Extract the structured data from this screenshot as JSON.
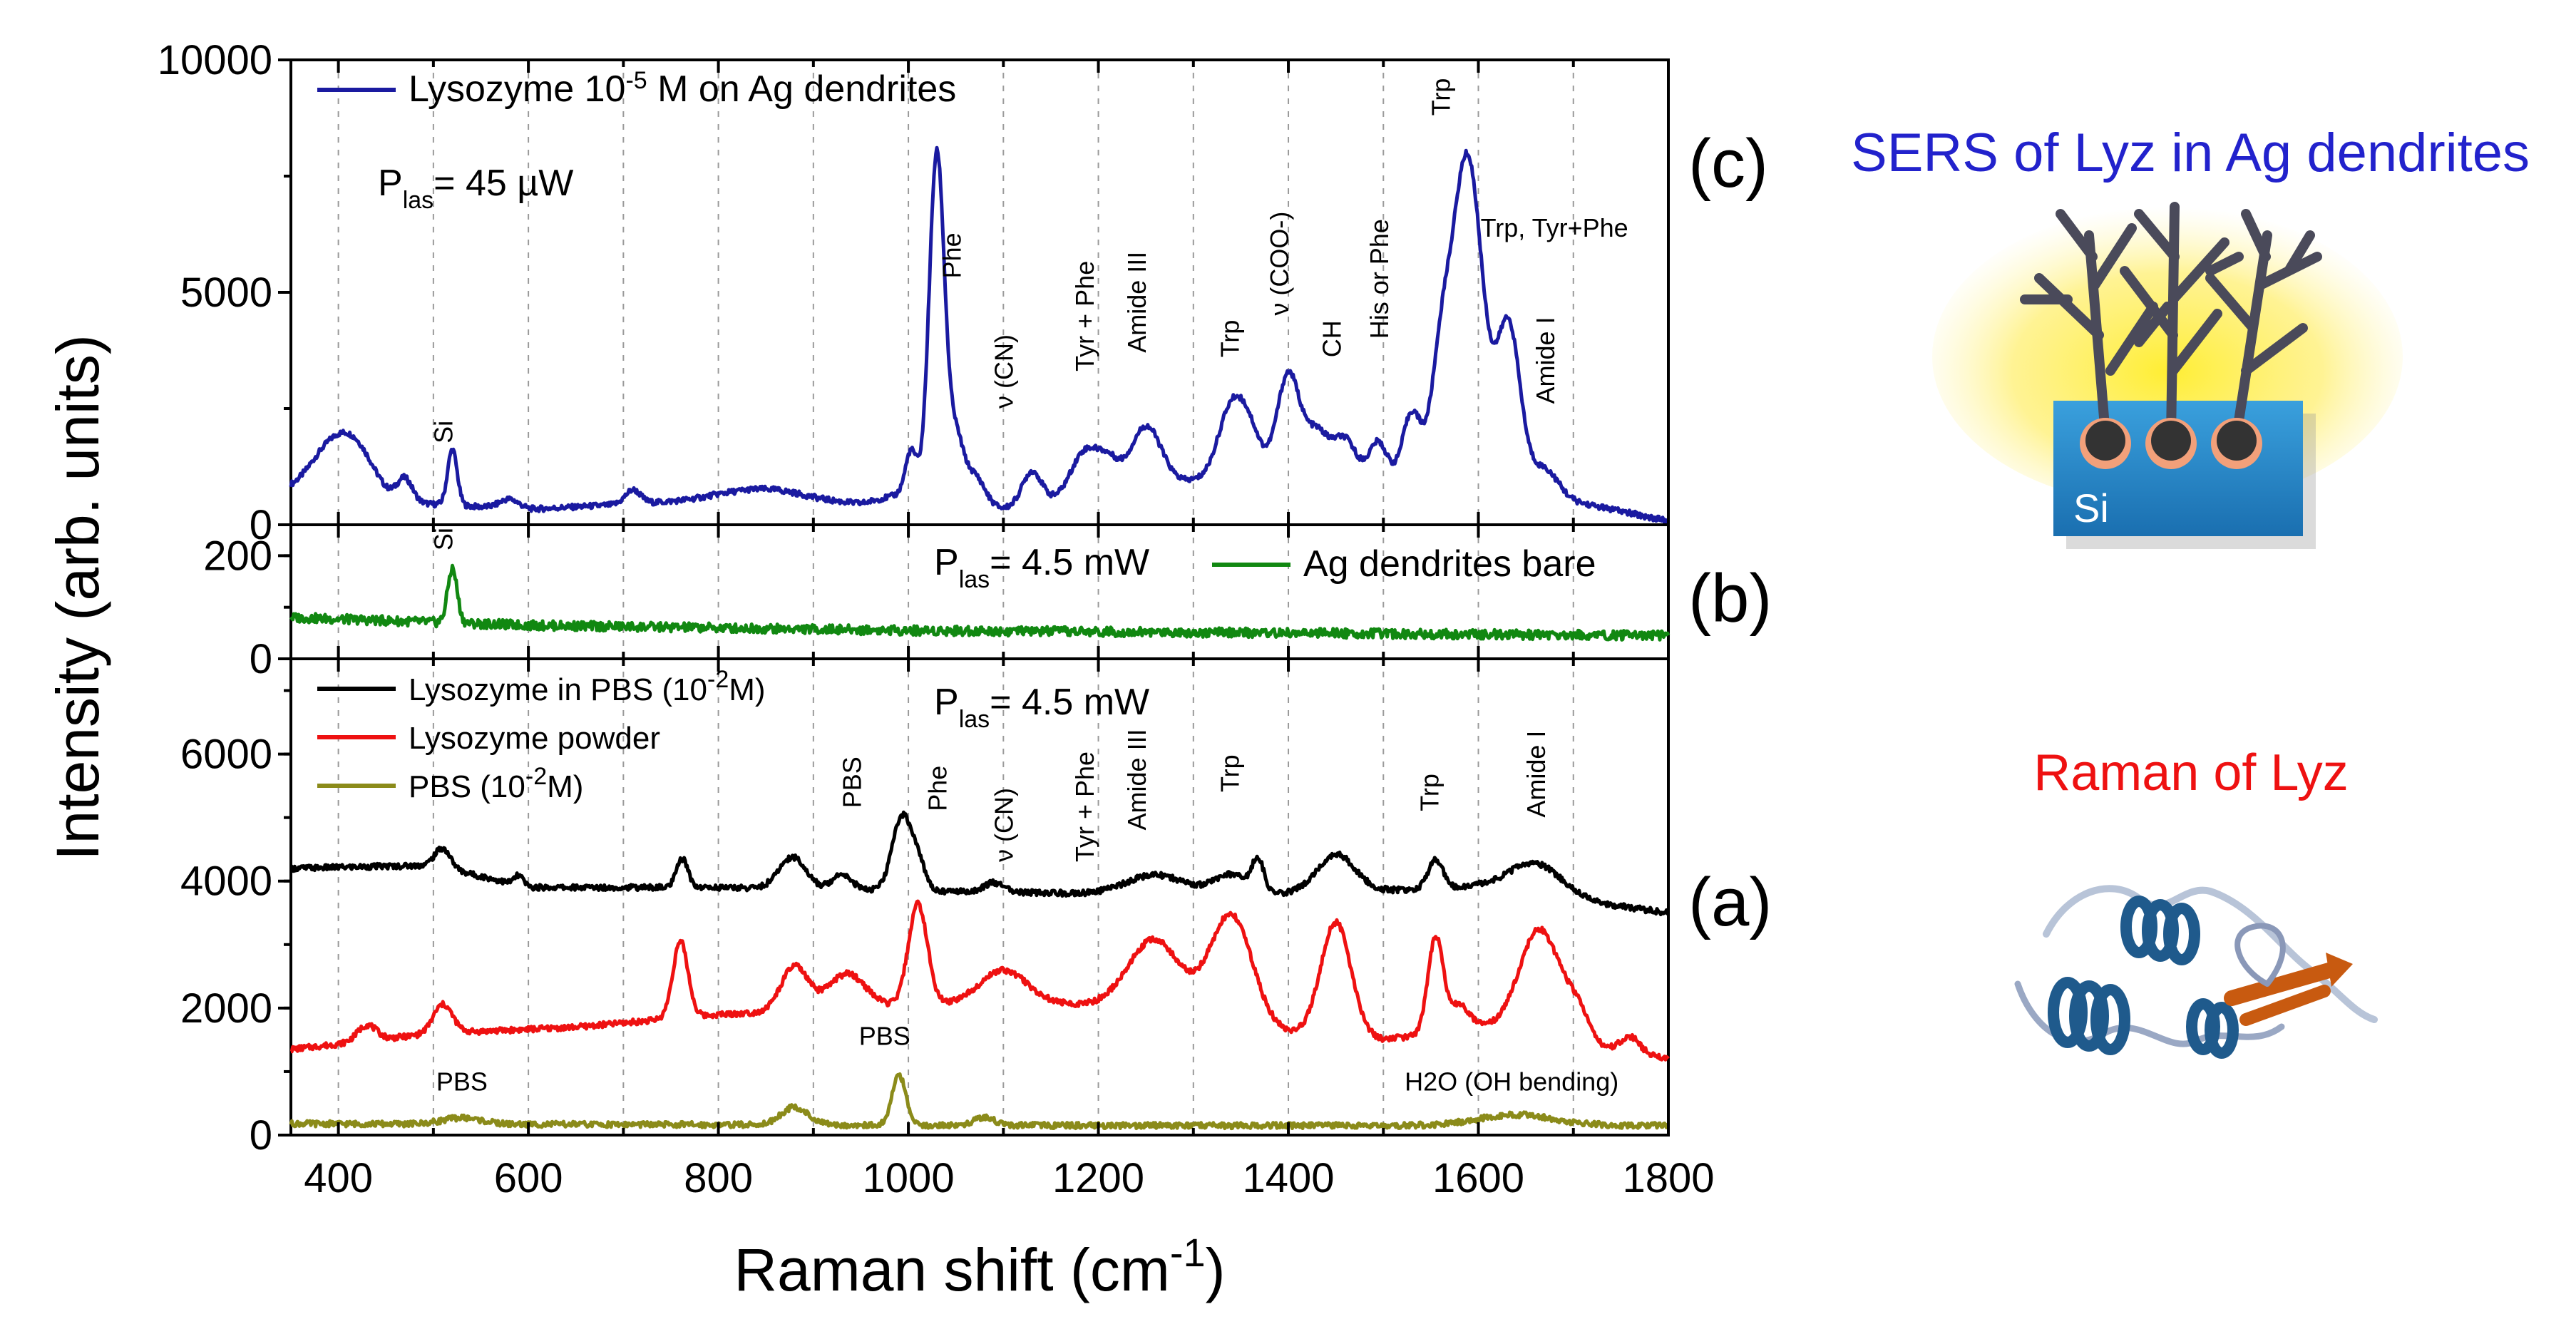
{
  "figure": {
    "y_axis_label": "Intensity (arb. units)",
    "x_axis_label_main": "Raman shift (cm",
    "x_axis_label_sup": "-1",
    "x_axis_label_end": ")",
    "panel_c_letter": "(c)",
    "panel_b_letter": "(b)",
    "panel_a_letter": "(a)",
    "sers_title": "SERS of Lyz in Ag dendrites",
    "si_label": "Si",
    "raman_title": "Raman of Lyz",
    "sers_title_color": "#2222cc",
    "raman_title_color": "#ee1111"
  },
  "chart_data": [
    {
      "panel": "c",
      "type": "line",
      "ylim": [
        0,
        10000
      ],
      "yticks": [
        0,
        5000,
        10000
      ],
      "xlim": [
        350,
        1800
      ],
      "grid": true,
      "legend": [
        {
          "name": "Lysozyme 10-5 M on Ag dendrites",
          "color": "#1a1aa0",
          "text_pre": "Lysozyme 10",
          "sup": "-5",
          "text_post": " M on Ag dendrites"
        }
      ],
      "power": {
        "pre": "P",
        "sub": "las",
        "post": "= 45 µW"
      },
      "series": [
        {
          "name": "Lysozyme 10-5 M on Ag dendrites",
          "color": "#1a1aa0",
          "baseline": [
            [
              350,
              700
            ],
            [
              450,
              500
            ],
            [
              600,
              330
            ],
            [
              800,
              550
            ],
            [
              950,
              450
            ],
            [
              1000,
              700
            ],
            [
              1100,
              350
            ],
            [
              1200,
              700
            ],
            [
              1300,
              950
            ],
            [
              1450,
              1100
            ],
            [
              1500,
              800
            ],
            [
              1600,
              1200
            ],
            [
              1700,
              500
            ],
            [
              1800,
              80
            ]
          ],
          "peaks": [
            [
              390,
              900,
              22
            ],
            [
              420,
              900,
              20
            ],
            [
              470,
              500,
              8
            ],
            [
              520,
              1200,
              5
            ],
            [
              580,
              200,
              10
            ],
            [
              710,
              300,
              8
            ],
            [
              850,
              250,
              40
            ],
            [
              1003,
              900,
              6
            ],
            [
              1030,
              7400,
              8
            ],
            [
              1050,
              1300,
              8
            ],
            [
              1070,
              600,
              10
            ],
            [
              1130,
              700,
              10
            ],
            [
              1185,
              900,
              14
            ],
            [
              1210,
              600,
              12
            ],
            [
              1250,
              1300,
              16
            ],
            [
              1340,
              1500,
              14
            ],
            [
              1360,
              800,
              12
            ],
            [
              1400,
              2200,
              12
            ],
            [
              1430,
              900,
              12
            ],
            [
              1460,
              800,
              12
            ],
            [
              1495,
              950,
              10
            ],
            [
              1530,
              1500,
              10
            ],
            [
              1560,
              2000,
              10
            ],
            [
              1588,
              6800,
              16
            ],
            [
              1632,
              3300,
              12
            ],
            [
              1670,
              500,
              14
            ]
          ]
        }
      ],
      "annotations": [
        {
          "text": "Si",
          "x": 520,
          "y": 1750,
          "rot": -90
        },
        {
          "text": "Phe",
          "x": 1055,
          "y": 5300,
          "rot": -90
        },
        {
          "text": "ν (CN)",
          "x": 1110,
          "y": 2500,
          "rot": -90
        },
        {
          "text": "Tyr + Phe",
          "x": 1195,
          "y": 3300,
          "rot": -90
        },
        {
          "text": "Amide III",
          "x": 1250,
          "y": 3700,
          "rot": -90
        },
        {
          "text": "Trp",
          "x": 1348,
          "y": 3600,
          "rot": -90
        },
        {
          "text": "ν (COO-)",
          "x": 1400,
          "y": 4500,
          "rot": -90
        },
        {
          "text": "CH",
          "x": 1455,
          "y": 3600,
          "rot": -90
        },
        {
          "text": "His or Phe",
          "x": 1505,
          "y": 4000,
          "rot": -90
        },
        {
          "text": "Trp",
          "x": 1570,
          "y": 8800,
          "rot": -90
        },
        {
          "text": "Trp, Tyr+Phe",
          "x": 1680,
          "y": 6200,
          "rot": 0
        },
        {
          "text": "Amide I",
          "x": 1680,
          "y": 2600,
          "rot": -90
        }
      ]
    },
    {
      "panel": "b",
      "type": "line",
      "ylim": [
        0,
        260
      ],
      "yticks": [
        0,
        200
      ],
      "xlim": [
        350,
        1800
      ],
      "grid": true,
      "legend": [
        {
          "name": "Ag dendrites bare",
          "color": "#118811"
        }
      ],
      "power": {
        "pre": "P",
        "sub": "las",
        "post": "= 4.5 mW"
      },
      "series": [
        {
          "name": "Ag dendrites bare",
          "color": "#118811",
          "baseline": [
            [
              350,
              80
            ],
            [
              600,
              65
            ],
            [
              1000,
              55
            ],
            [
              1800,
              45
            ]
          ],
          "peaks": [
            [
              520,
              105,
              5
            ]
          ]
        }
      ],
      "annotations": [
        {
          "text": "Si",
          "x": 520,
          "y": 210,
          "rot": -90
        }
      ]
    },
    {
      "panel": "a",
      "type": "line",
      "ylim": [
        0,
        7500
      ],
      "yticks": [
        0,
        2000,
        4000,
        6000
      ],
      "xlim": [
        350,
        1800
      ],
      "grid": true,
      "legend": [
        {
          "name": "Lysozyme in PBS (10-2M)",
          "color": "#000000",
          "text_pre": "Lysozyme in PBS (10",
          "sup": "-2",
          "text_post": "M)"
        },
        {
          "name": "Lysozyme powder",
          "color": "#ee1111",
          "text_pre": "Lysozyme powder",
          "sup": "",
          "text_post": ""
        },
        {
          "name": "PBS (10-2M)",
          "color": "#8b8b1a",
          "text_pre": "PBS (10",
          "sup": "-2",
          "text_post": "M)"
        }
      ],
      "power": {
        "pre": "P",
        "sub": "las",
        "post": "= 4.5 mW"
      },
      "series": [
        {
          "name": "Lysozyme in PBS (10-2M)",
          "color": "#000000",
          "baseline": [
            [
              350,
              4200
            ],
            [
              500,
              4250
            ],
            [
              600,
              3900
            ],
            [
              800,
              3900
            ],
            [
              1000,
              3850
            ],
            [
              1200,
              3800
            ],
            [
              1400,
              3800
            ],
            [
              1600,
              3900
            ],
            [
              1800,
              3500
            ]
          ],
          "peaks": [
            [
              510,
              300,
              8
            ],
            [
              590,
              150,
              5
            ],
            [
              762,
              450,
              6
            ],
            [
              878,
              500,
              14
            ],
            [
              930,
              250,
              10
            ],
            [
              993,
              1150,
              10
            ],
            [
              1010,
              400,
              8
            ],
            [
              1090,
              150,
              10
            ],
            [
              1260,
              300,
              30
            ],
            [
              1340,
              300,
              18
            ],
            [
              1368,
              500,
              6
            ],
            [
              1450,
              600,
              20
            ],
            [
              1555,
              450,
              8
            ],
            [
              1660,
              500,
              28
            ]
          ]
        },
        {
          "name": "Lysozyme powder",
          "color": "#ee1111",
          "baseline": [
            [
              350,
              1350
            ],
            [
              500,
              1600
            ],
            [
              650,
              1700
            ],
            [
              800,
              1900
            ],
            [
              950,
              2000
            ],
            [
              1100,
              2100
            ],
            [
              1250,
              2000
            ],
            [
              1400,
              1600
            ],
            [
              1500,
              1500
            ],
            [
              1600,
              1700
            ],
            [
              1800,
              1200
            ]
          ],
          "peaks": [
            [
              430,
              250,
              10
            ],
            [
              510,
              450,
              10
            ],
            [
              760,
              1200,
              8
            ],
            [
              880,
              700,
              14
            ],
            [
              935,
              550,
              20
            ],
            [
              1010,
              1600,
              10
            ],
            [
              1100,
              500,
              25
            ],
            [
              1260,
              1100,
              28
            ],
            [
              1340,
              1700,
              22
            ],
            [
              1450,
              1800,
              16
            ],
            [
              1555,
              1500,
              8
            ],
            [
              1580,
              400,
              10
            ],
            [
              1665,
              1700,
              22
            ],
            [
              1705,
              400,
              12
            ],
            [
              1760,
              250,
              10
            ]
          ]
        },
        {
          "name": "PBS (10-2M)",
          "color": "#8b8b1a",
          "baseline": [
            [
              350,
              180
            ],
            [
              600,
              170
            ],
            [
              900,
              160
            ],
            [
              1200,
              150
            ],
            [
              1800,
              150
            ]
          ],
          "peaks": [
            [
              530,
              100,
              20
            ],
            [
              880,
              280,
              14
            ],
            [
              990,
              800,
              7
            ],
            [
              1080,
              130,
              10
            ],
            [
              1640,
              170,
              40
            ]
          ]
        }
      ],
      "annotations": [
        {
          "text": "PBS",
          "x": 950,
          "y": 5150,
          "rot": -90
        },
        {
          "text": "Phe",
          "x": 1040,
          "y": 5100,
          "rot": -90
        },
        {
          "text": "ν (CN)",
          "x": 1110,
          "y": 4300,
          "rot": -90
        },
        {
          "text": "Tyr + Phe",
          "x": 1195,
          "y": 4300,
          "rot": -90
        },
        {
          "text": "Amide III",
          "x": 1250,
          "y": 4800,
          "rot": -90
        },
        {
          "text": "Trp",
          "x": 1348,
          "y": 5400,
          "rot": -90
        },
        {
          "text": "Trp",
          "x": 1558,
          "y": 5100,
          "rot": -90
        },
        {
          "text": "Amide I",
          "x": 1670,
          "y": 5000,
          "rot": -90
        },
        {
          "text": "PBS",
          "x": 530,
          "y": 700,
          "rot": 0
        },
        {
          "text": "PBS",
          "x": 975,
          "y": 1420,
          "rot": 0
        },
        {
          "text": "H2O (OH bending)",
          "x": 1635,
          "y": 700,
          "rot": 0
        }
      ]
    }
  ]
}
